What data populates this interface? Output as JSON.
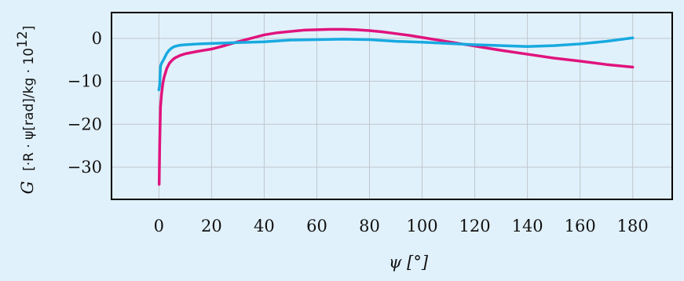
{
  "chart_data": {
    "type": "line",
    "xlabel": "ψ [°]",
    "ylabel": {
      "symbol": "G",
      "unit": "[·R · ψ[rad]/kg · 10",
      "exponent": "12",
      "close": "]"
    },
    "xlim": [
      -18,
      195
    ],
    "ylim": [
      -37.5,
      6
    ],
    "x_ticks": [
      0,
      20,
      40,
      60,
      80,
      100,
      120,
      140,
      160,
      180
    ],
    "x_tick_labels": [
      "0",
      "20",
      "40",
      "60",
      "80",
      "100",
      "120",
      "140",
      "160",
      "180"
    ],
    "y_ticks": [
      0,
      -10,
      -20,
      -30
    ],
    "y_tick_labels": [
      "0",
      "−10",
      "−20",
      "−30"
    ],
    "grid": true,
    "series": [
      {
        "color": "#e0137d",
        "x": [
          0.1,
          0.3,
          0.6,
          1,
          1.5,
          2,
          3,
          4,
          5,
          6,
          8,
          10,
          15,
          20,
          25,
          30,
          35,
          40,
          45,
          50,
          55,
          60,
          65,
          70,
          75,
          80,
          85,
          90,
          95,
          100,
          110,
          120,
          130,
          140,
          150,
          160,
          170,
          180
        ],
        "y": [
          -34,
          -25,
          -16,
          -13,
          -10.5,
          -9,
          -7,
          -5.8,
          -5.1,
          -4.6,
          -4.0,
          -3.6,
          -3.0,
          -2.5,
          -1.7,
          -0.8,
          0.0,
          0.8,
          1.3,
          1.6,
          1.9,
          2.0,
          2.1,
          2.1,
          2.0,
          1.8,
          1.5,
          1.1,
          0.7,
          0.2,
          -0.8,
          -1.8,
          -2.8,
          -3.7,
          -4.6,
          -5.3,
          -6.1,
          -6.7
        ]
      },
      {
        "color": "#18a9e0",
        "x": [
          0,
          0.3,
          0.6,
          1,
          1.5,
          2,
          3,
          4,
          5,
          6,
          8,
          10,
          15,
          20,
          30,
          40,
          50,
          60,
          70,
          80,
          90,
          100,
          110,
          120,
          130,
          140,
          150,
          160,
          170,
          180
        ],
        "y": [
          -12,
          -11,
          -6.5,
          -5.8,
          -5.3,
          -4.7,
          -3.5,
          -2.7,
          -2.2,
          -1.9,
          -1.6,
          -1.5,
          -1.3,
          -1.2,
          -1.0,
          -0.8,
          -0.4,
          -0.3,
          -0.2,
          -0.3,
          -0.7,
          -0.9,
          -1.2,
          -1.5,
          -1.7,
          -1.9,
          -1.7,
          -1.3,
          -0.7,
          0.1
        ]
      }
    ]
  }
}
